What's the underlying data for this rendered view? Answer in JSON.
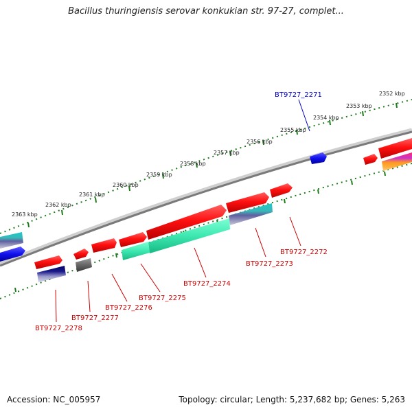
{
  "title": "Bacillus thuringiensis serovar konkukian str. 97-27, complet...",
  "footer": {
    "accession": "Accession: NC_005957",
    "summary": "Topology: circular; Length: 5,237,682 bp; Genes: 5,263"
  },
  "colors": {
    "backbone": "#8a8a8a",
    "ticks": "#1f7a1f",
    "forward_gene": "#ff1a1a",
    "highlight_label": "#0000cc",
    "gene_label": "#cc0000",
    "teal_feature": "#3de8b0",
    "blue_feature": "#1a1aff"
  },
  "ticks": [
    {
      "label": "2352 kbp"
    },
    {
      "label": "2353 kbp"
    },
    {
      "label": "2354 kbp"
    },
    {
      "label": "2355 kbp"
    },
    {
      "label": "2356 kbp"
    },
    {
      "label": "2357 kbp"
    },
    {
      "label": "2358 kbp"
    },
    {
      "label": "2359 kbp"
    },
    {
      "label": "2360 kbp"
    },
    {
      "label": "2361 kbp"
    },
    {
      "label": "2362 kbp"
    },
    {
      "label": "2363 kbp"
    }
  ],
  "genes": [
    {
      "label": "BT9727_2271",
      "color": "#0000cc"
    },
    {
      "label": "BT9727_2272",
      "color": "#cc0000"
    },
    {
      "label": "BT9727_2273",
      "color": "#cc0000"
    },
    {
      "label": "BT9727_2274",
      "color": "#cc0000"
    },
    {
      "label": "BT9727_2275",
      "color": "#cc0000"
    },
    {
      "label": "BT9727_2276",
      "color": "#cc0000"
    },
    {
      "label": "BT9727_2277",
      "color": "#cc0000"
    },
    {
      "label": "BT9727_2278",
      "color": "#cc0000"
    }
  ]
}
